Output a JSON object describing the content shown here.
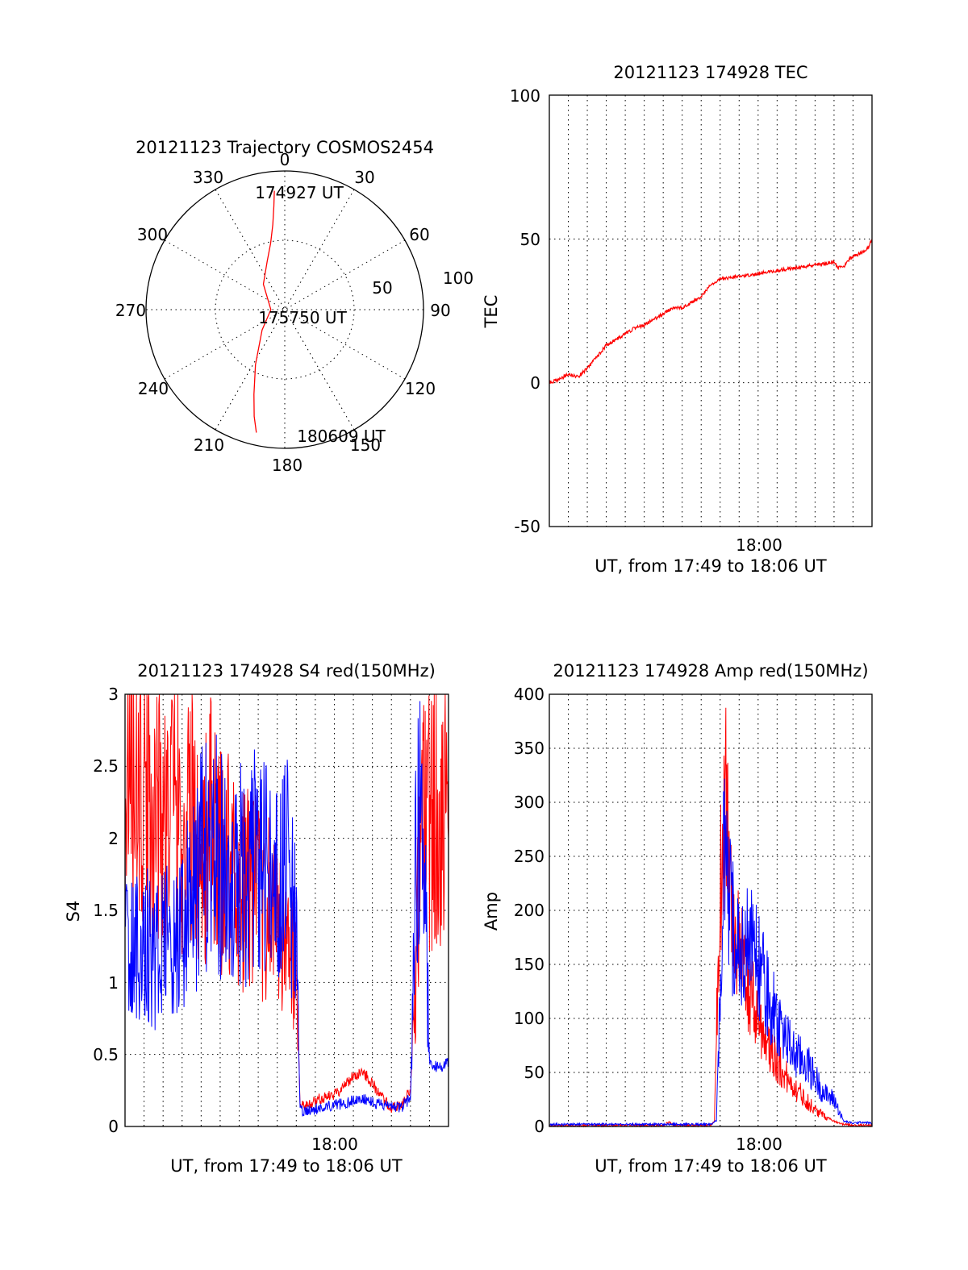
{
  "colors": {
    "red_series": "#ff0000",
    "blue_series": "#0000ff",
    "axes": "#000000",
    "background": "#ffffff"
  },
  "chart_data": [
    {
      "type": "polar",
      "title": "20121123 Trajectory COSMOS2454",
      "angle_labels": [
        "0",
        "30",
        "60",
        "90",
        "120",
        "150",
        "180",
        "210",
        "240",
        "270",
        "300",
        "330"
      ],
      "radial_labels": [
        "50",
        "100"
      ],
      "rlim": [
        0,
        100
      ],
      "grid": true,
      "annotations": [
        "174927 UT",
        "175750 UT",
        "180609 UT"
      ],
      "series": [
        {
          "color": "#ff0000",
          "azimuth_deg": [
            355,
            354,
            352,
            348,
            340,
            320,
            270,
            228,
            208,
            200,
            196,
            193
          ],
          "radius": [
            86,
            75,
            62,
            49,
            37,
            24,
            10,
            22,
            45,
            65,
            80,
            91
          ]
        }
      ]
    },
    {
      "type": "line",
      "title": "20121123 174928 TEC",
      "xlabel": "UT, from 17:49 to 18:06 UT",
      "ylabel": "TEC",
      "x_tick_labels": [
        "18:00"
      ],
      "y_tick_labels": [
        "-50",
        "0",
        "50",
        "100"
      ],
      "xlim": [
        "17:49",
        "18:06"
      ],
      "ylim": [
        -50,
        100
      ],
      "grid": true,
      "series": [
        {
          "color": "#ff0000",
          "x_min": [
            0,
            0.5,
            1.0,
            1.5,
            2.0,
            2.5,
            3.0,
            3.5,
            4.0,
            4.5,
            5.0,
            5.5,
            6.0,
            6.5,
            7.0,
            7.5,
            8.0,
            8.5,
            9.0,
            15.0,
            15.2,
            15.4,
            15.6,
            15.8,
            16.0,
            16.4,
            16.8,
            17.0
          ],
          "values": [
            0,
            1,
            3,
            2,
            5,
            9,
            13,
            15,
            17,
            19,
            20,
            22,
            24,
            26,
            26,
            28,
            30,
            34,
            36,
            42,
            40,
            40,
            41,
            43,
            44,
            45,
            47,
            50
          ]
        }
      ]
    },
    {
      "type": "line",
      "title": "20121123 174928 S4 red(150MHz)",
      "xlabel": "UT, from 17:49 to 18:06 UT",
      "ylabel": "S4",
      "x_tick_labels": [
        "18:00"
      ],
      "y_tick_labels": [
        "0",
        "0.5",
        "1",
        "1.5",
        "2",
        "2.5",
        "3"
      ],
      "xlim": [
        "17:49",
        "18:06"
      ],
      "ylim": [
        0,
        3
      ],
      "grid": true,
      "series": [
        {
          "color": "#ff0000",
          "x_min": [
            0,
            0.5,
            1.0,
            1.5,
            2.0,
            2.5,
            3.0,
            3.5,
            4.0,
            4.5,
            5.0,
            5.5,
            6.0,
            6.5,
            7.0,
            7.5,
            8.0,
            8.5,
            9.0,
            9.2,
            9.5,
            10.0,
            10.5,
            11.0,
            11.5,
            12.0,
            12.5,
            13.0,
            13.5,
            14.0,
            14.5,
            15.0,
            15.3,
            15.6,
            16.0,
            16.5,
            17.0
          ],
          "values": [
            2.4,
            2.5,
            2.2,
            2.3,
            2.1,
            2.3,
            2.0,
            2.2,
            1.9,
            2.1,
            1.8,
            1.9,
            1.6,
            1.7,
            1.6,
            1.5,
            1.4,
            1.2,
            1.1,
            0.15,
            0.14,
            0.18,
            0.2,
            0.22,
            0.28,
            0.35,
            0.38,
            0.3,
            0.2,
            0.12,
            0.15,
            0.25,
            1.2,
            2.0,
            2.1,
            2.3,
            2.0
          ]
        },
        {
          "color": "#0000ff",
          "x_min": [
            0,
            0.5,
            1.0,
            1.5,
            2.0,
            2.5,
            3.0,
            3.5,
            4.0,
            4.5,
            5.0,
            5.5,
            6.0,
            6.5,
            7.0,
            7.5,
            8.0,
            8.5,
            9.0,
            9.2,
            9.5,
            10.0,
            10.5,
            11.0,
            11.5,
            12.0,
            12.5,
            13.0,
            13.5,
            14.0,
            14.5,
            15.0,
            15.3,
            15.6,
            16.0,
            16.5,
            17.0
          ],
          "values": [
            1.3,
            1.2,
            1.3,
            1.2,
            1.3,
            1.2,
            1.3,
            1.6,
            1.8,
            2.0,
            1.8,
            1.7,
            1.8,
            1.6,
            2.0,
            1.7,
            1.6,
            1.8,
            1.3,
            0.12,
            0.1,
            0.12,
            0.14,
            0.15,
            0.16,
            0.18,
            0.2,
            0.17,
            0.15,
            0.14,
            0.13,
            0.2,
            1.9,
            2.4,
            0.45,
            0.4,
            0.45
          ]
        }
      ]
    },
    {
      "type": "line",
      "title": "20121123 174928 Amp red(150MHz)",
      "xlabel": "UT, from 17:49 to 18:06 UT",
      "ylabel": "Amp",
      "x_tick_labels": [
        "18:00"
      ],
      "y_tick_labels": [
        "0",
        "50",
        "100",
        "150",
        "200",
        "250",
        "300",
        "350",
        "400"
      ],
      "xlim": [
        "17:49",
        "18:06"
      ],
      "ylim": [
        0,
        400
      ],
      "grid": true,
      "series": [
        {
          "color": "#ff0000",
          "x_min": [
            0,
            2.0,
            4.0,
            6.0,
            6.3,
            6.6,
            7.0,
            8.5,
            8.7,
            8.9,
            9.1,
            9.3,
            9.5,
            9.8,
            10.0,
            10.3,
            10.6,
            11.0,
            11.5,
            12.0,
            12.5,
            13.0,
            13.5,
            14.0,
            14.5,
            15.0,
            15.5,
            16.0,
            16.5,
            17.0
          ],
          "values": [
            1,
            1,
            1,
            1,
            4,
            1,
            1,
            1,
            5,
            150,
            270,
            320,
            230,
            180,
            160,
            140,
            120,
            100,
            80,
            60,
            45,
            35,
            25,
            15,
            10,
            5,
            2,
            1,
            1,
            1
          ]
        },
        {
          "color": "#0000ff",
          "x_min": [
            0,
            2.0,
            4.0,
            6.0,
            7.0,
            8.5,
            8.8,
            9.0,
            9.2,
            9.5,
            9.8,
            10.0,
            10.3,
            10.6,
            11.0,
            11.5,
            12.0,
            12.5,
            13.0,
            13.5,
            14.0,
            14.5,
            15.0,
            15.5,
            16.0,
            16.5,
            17.0
          ],
          "values": [
            2,
            2,
            2,
            2,
            2,
            2,
            5,
            120,
            250,
            200,
            170,
            160,
            165,
            170,
            150,
            120,
            100,
            80,
            65,
            60,
            45,
            30,
            25,
            5,
            3,
            4,
            3
          ]
        }
      ]
    }
  ]
}
